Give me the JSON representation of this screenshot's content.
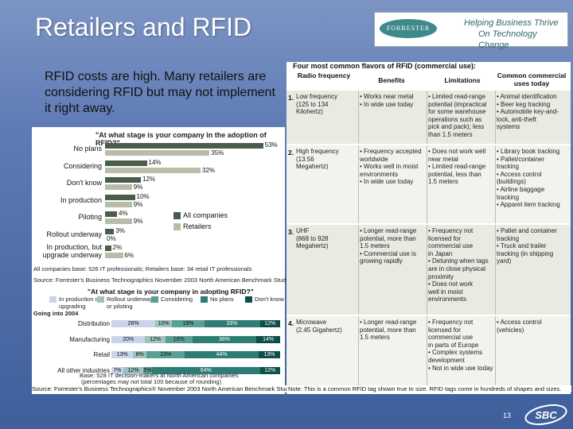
{
  "slide": {
    "title": "Retailers and RFID",
    "subtitle": "RFID costs are high.  Many retailers are considering RFID but may not implement it right away.",
    "page_number": "13",
    "logo_text": "FORRESTER",
    "logo_tagline_1": "Helping Business Thrive",
    "logo_tagline_2": "On Technology Change",
    "sbc_logo": "SBC"
  },
  "adoption_chart": {
    "question": "\"At what stage is your company in the adoption of RFID?\"",
    "legend": [
      "All companies",
      "Retailers"
    ],
    "colors": {
      "all": "#4a5d4a",
      "retailers": "#b8bca8"
    },
    "rows": [
      {
        "label": "No plans",
        "all_label": "53%",
        "ret_label": "35%",
        "all": 53,
        "retailers": 35
      },
      {
        "label": "Considering",
        "all_label": "14%",
        "ret_label": "32%",
        "all": 14,
        "retailers": 32
      },
      {
        "label": "Don't know",
        "all_label": "12%",
        "ret_label": "9%",
        "all": 12,
        "retailers": 9
      },
      {
        "label": "In production",
        "all_label": "10%",
        "ret_label": "9%",
        "all": 10,
        "retailers": 9
      },
      {
        "label": "Piloting",
        "all_label": "4%",
        "ret_label": "9%",
        "all": 4,
        "retailers": 9
      },
      {
        "label": "Rollout underway",
        "all_label": "3%",
        "ret_label": "0%",
        "all": 3,
        "retailers": 0
      },
      {
        "label": "In production, but upgrade underway",
        "all_label": "2%",
        "ret_label": "6%",
        "all": 2,
        "retailers": 6
      }
    ],
    "base_note": "All companies base: 526 IT professionals; Retailers base: 34 retail IT professionals",
    "source": "Source: Forrester's Business Technographics November 2003 North American Benchmark Study"
  },
  "stacked_chart": {
    "question": "\"At what stage is your company in adopting RFID?\"",
    "legend": [
      {
        "label": "In production or upgrading",
        "color": "#c9d4e8"
      },
      {
        "label": "Rollout underway or piloting",
        "color": "#9fc2bd"
      },
      {
        "label": "Considering",
        "color": "#5a9f96"
      },
      {
        "label": "No plans",
        "color": "#2d7d75"
      },
      {
        "label": "Don't know",
        "color": "#0f4f4a"
      }
    ],
    "going_into": "Going into 2004",
    "rows": [
      {
        "label": "Distribution",
        "values": [
          26,
          10,
          19,
          33,
          12
        ],
        "labels": [
          "26%",
          "10%",
          "19%",
          "33%",
          "12%"
        ]
      },
      {
        "label": "Manufacturing",
        "values": [
          20,
          12,
          16,
          38,
          14
        ],
        "labels": [
          "20%",
          "12%",
          "16%",
          "38%",
          "14%"
        ]
      },
      {
        "label": "Retail",
        "values": [
          13,
          8,
          23,
          44,
          13
        ],
        "labels": [
          "13%",
          "8%",
          "23%",
          "44%",
          "13%"
        ]
      },
      {
        "label": "All other industries",
        "values": [
          7,
          12,
          5,
          64,
          12
        ],
        "labels": [
          "7%",
          "12%",
          "5%",
          "64%",
          "12%"
        ]
      }
    ],
    "base_note_1": "Base: 528 IT decision-makers at North American companies",
    "base_note_2": "(percentages may not total 100 because of rounding)",
    "source": "Source: Forrester's Business Technographics® November 2003 North American Benchmark Study"
  },
  "rfid_table": {
    "title": "Four most common flavors of RFID (commercial use):",
    "headers": [
      "Radio frequency",
      "Benefits",
      "Limitations",
      "Common commercial uses today"
    ],
    "rows": [
      {
        "num": "1.",
        "frequency": [
          "Low frequency",
          "(125 to 134",
          "Kilohertz)"
        ],
        "benefits": [
          "• Works near metal",
          "• In wide use today"
        ],
        "limitations": [
          "• Limited read-range",
          "potential (impractical",
          "for some warehouse",
          "operations such as",
          "pick and pack); less",
          "than 1.5 meters"
        ],
        "uses": [
          "• Animal identification",
          "• Beer keg tracking",
          "• Automobile key-and-",
          "lock, anti-theft",
          "systems"
        ]
      },
      {
        "num": "2.",
        "frequency": [
          "High frequency",
          "(13.56",
          "Megahertz)"
        ],
        "benefits": [
          "• Frequency accepted",
          "worldwide",
          "• Works well in moist",
          "environments",
          "• In wide use today"
        ],
        "limitations": [
          "• Does not work well",
          "near metal",
          "• Limited read-range",
          "potential, less than",
          "1.5 meters"
        ],
        "uses": [
          "• Library book tracking",
          "• Pallet/container",
          "tracking",
          "• Access control",
          "(buildings)",
          "• Airline baggage",
          "tracking",
          "• Apparel item tracking"
        ]
      },
      {
        "num": "3.",
        "frequency": [
          "UHF",
          "(868 to 928",
          "Megahertz)"
        ],
        "benefits": [
          "• Longer read-range",
          "potential, more than",
          "1.5 meters",
          "• Commercial use is",
          "growing rapidly"
        ],
        "limitations": [
          "• Frequency not",
          "licensed for",
          "commercial use",
          "in Japan",
          "• Detuning when tags",
          "are in close physical",
          "proximity",
          "• Does not work",
          "well in moist",
          "environments"
        ],
        "uses": [
          "• Pallet and container",
          "tracking",
          "• Truck and trailer",
          "tracking (in shipping",
          "yard)"
        ]
      },
      {
        "num": "4.",
        "frequency": [
          "Microwave",
          "(2.45 Gigahertz)"
        ],
        "benefits": [
          "• Longer read-range",
          "potential, more than",
          "1.5 meters"
        ],
        "limitations": [
          "• Frequency not",
          "licensed for",
          "commercial use",
          "in parts of Europe",
          "• Complex systems",
          "development",
          "• Not in wide use today"
        ],
        "uses": [
          "• Access control",
          "(vehicles)"
        ]
      }
    ],
    "note": "Note: This is a common RFID tag shown true to size. RFID tags come in hundreds of shapes and sizes."
  }
}
